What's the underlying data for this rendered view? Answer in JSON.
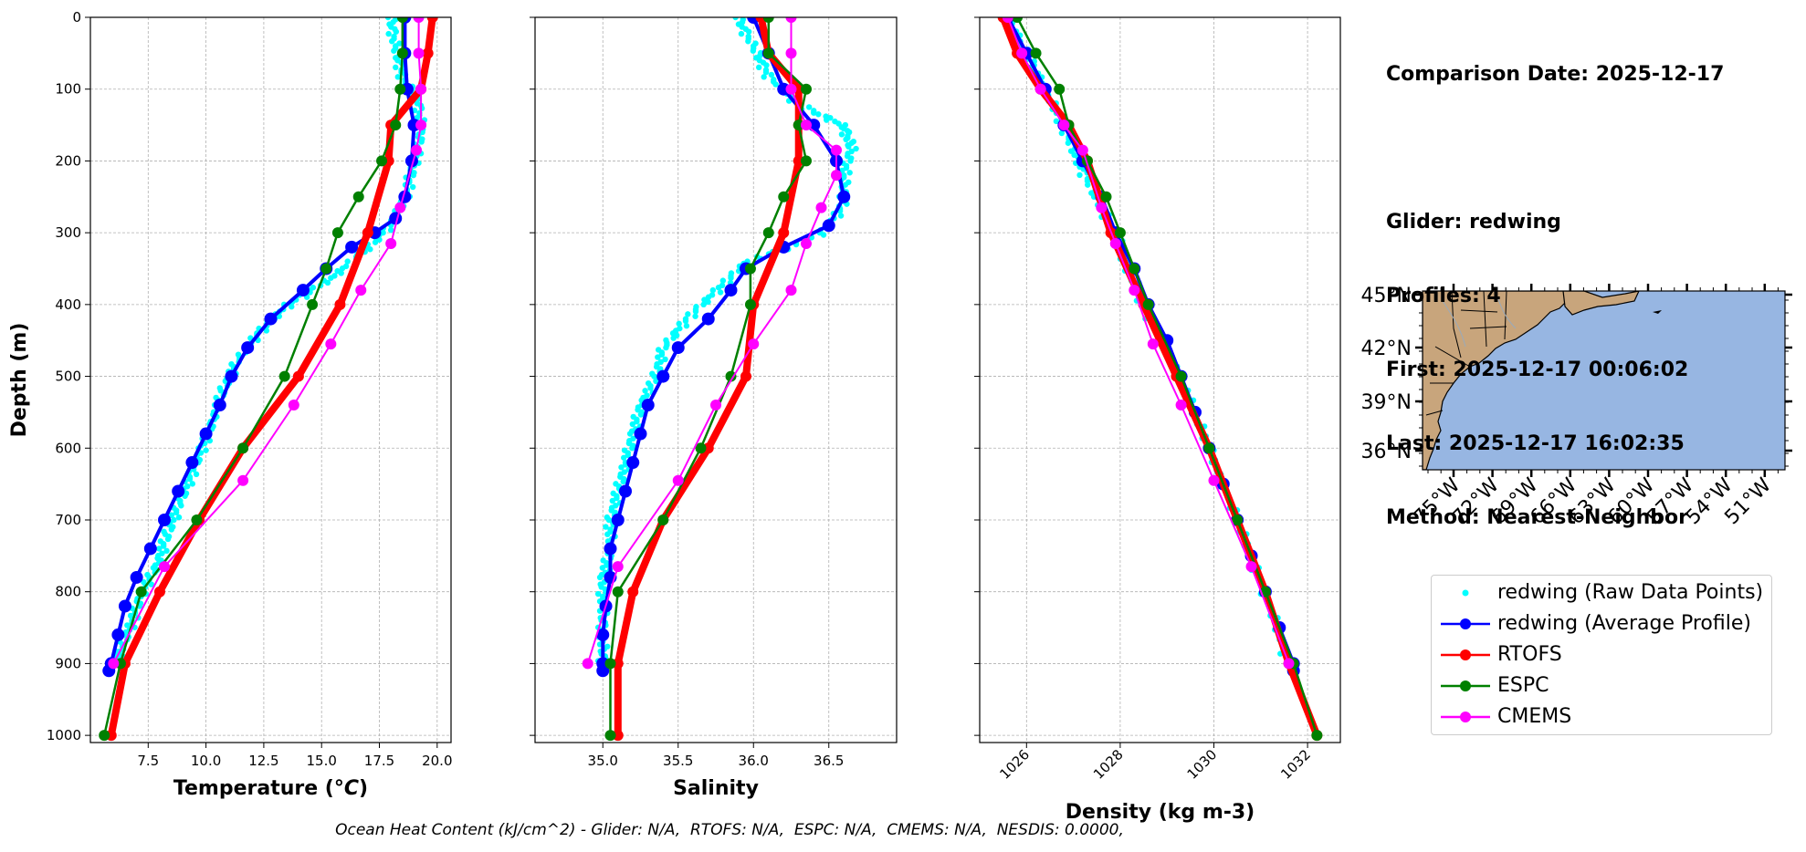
{
  "info": {
    "comparison_date": "Comparison Date: 2025-12-17",
    "glider": "Glider: redwing",
    "profiles": "Profiles: 4",
    "first": "First: 2025-12-17 00:06:02",
    "last": "Last: 2025-12-17 16:02:35",
    "method": "Method: Nearest-Neighbor"
  },
  "footer": "Ocean Heat Content (kJ/cm^2) - Glider: N/A,  RTOFS: N/A,  ESPC: N/A,  CMEMS: N/A,  NESDIS: 0.0000,",
  "colors": {
    "raw": "#00ffff",
    "avg": "#0000ff",
    "rtofs": "#ff0000",
    "espc": "#008000",
    "cmems": "#ff00ff",
    "land": "#c8a57c",
    "ocean": "#97b6e2"
  },
  "legend": [
    {
      "label": "redwing (Raw Data Points)",
      "key": "raw",
      "style": "dots"
    },
    {
      "label": "redwing (Average Profile)",
      "key": "avg",
      "style": "line-marker"
    },
    {
      "label": "RTOFS",
      "key": "rtofs",
      "style": "line-marker"
    },
    {
      "label": "ESPC",
      "key": "espc",
      "style": "line-marker"
    },
    {
      "label": "CMEMS",
      "key": "cmems",
      "style": "line-marker"
    }
  ],
  "map": {
    "lat_ticks": [
      "45°N",
      "42°N",
      "39°N",
      "36°N"
    ],
    "lon_ticks": [
      "75°W",
      "72°W",
      "69°W",
      "66°W",
      "63°W",
      "60°W",
      "57°W",
      "54°W",
      "51°W"
    ]
  },
  "chart_data": [
    {
      "type": "line",
      "xlabel": "Temperature (°C)",
      "ylabel": "Depth (m)",
      "xlim": [
        5.0,
        20.6
      ],
      "ylim": [
        1010,
        0
      ],
      "xticks": [
        7.5,
        10.0,
        12.5,
        15.0,
        17.5,
        20.0
      ],
      "xtick_labels": [
        "7.5",
        "10.0",
        "12.5",
        "15.0",
        "17.5",
        "20.0"
      ],
      "yticks": [
        0,
        100,
        200,
        300,
        400,
        500,
        600,
        700,
        800,
        900,
        1000
      ],
      "grid": true,
      "series": [
        {
          "name": "redwing (Raw Data Points)",
          "key": "raw",
          "depth": [
            0,
            40,
            80,
            120,
            160,
            200,
            240,
            280,
            320,
            360,
            400,
            440,
            480,
            520,
            560,
            600,
            640,
            680,
            720,
            760,
            800,
            840,
            880,
            900
          ],
          "values": [
            18.0,
            18.2,
            18.5,
            19.2,
            19.3,
            19.0,
            18.7,
            18.2,
            17.0,
            15.5,
            13.5,
            12.2,
            11.3,
            10.7,
            10.3,
            9.8,
            9.3,
            8.8,
            8.3,
            7.9,
            7.2,
            6.8,
            6.3,
            6.0
          ]
        },
        {
          "name": "redwing (Average Profile)",
          "key": "avg",
          "depth": [
            0,
            50,
            100,
            150,
            200,
            250,
            280,
            300,
            320,
            350,
            380,
            420,
            460,
            500,
            540,
            580,
            620,
            660,
            700,
            740,
            780,
            820,
            860,
            900,
            910
          ],
          "values": [
            18.6,
            18.6,
            18.7,
            19.0,
            18.9,
            18.6,
            18.2,
            17.3,
            16.3,
            15.2,
            14.2,
            12.8,
            11.8,
            11.1,
            10.6,
            10.0,
            9.4,
            8.8,
            8.2,
            7.6,
            7.0,
            6.5,
            6.2,
            5.9,
            5.8
          ]
        },
        {
          "name": "RTOFS",
          "key": "rtofs",
          "depth": [
            0,
            50,
            100,
            150,
            200,
            300,
            400,
            500,
            600,
            700,
            800,
            900,
            1000
          ],
          "values": [
            19.8,
            19.6,
            19.3,
            18.0,
            17.9,
            17.0,
            15.8,
            14.0,
            11.6,
            9.7,
            8.0,
            6.5,
            5.9
          ]
        },
        {
          "name": "ESPC",
          "key": "espc",
          "depth": [
            0,
            50,
            100,
            150,
            200,
            250,
            300,
            350,
            400,
            500,
            600,
            700,
            800,
            900,
            1000
          ],
          "values": [
            18.5,
            18.5,
            18.4,
            18.2,
            17.6,
            16.6,
            15.7,
            15.2,
            14.6,
            13.4,
            11.6,
            9.6,
            7.2,
            6.3,
            5.6
          ]
        },
        {
          "name": "CMEMS",
          "key": "cmems",
          "depth": [
            0,
            50,
            100,
            150,
            185,
            265,
            315,
            380,
            455,
            540,
            645,
            765,
            900
          ],
          "values": [
            19.2,
            19.2,
            19.3,
            19.3,
            19.1,
            18.4,
            18.0,
            16.7,
            15.4,
            13.8,
            11.6,
            8.2,
            6.0
          ]
        }
      ]
    },
    {
      "type": "line",
      "xlabel": "Salinity",
      "ylabel": "",
      "xlim": [
        34.55,
        36.95
      ],
      "ylim": [
        1010,
        0
      ],
      "xticks": [
        35.0,
        35.5,
        36.0,
        36.5
      ],
      "xtick_labels": [
        "35.0",
        "35.5",
        "36.0",
        "36.5"
      ],
      "yticks": [
        0,
        100,
        200,
        300,
        400,
        500,
        600,
        700,
        800,
        900,
        1000
      ],
      "grid": true,
      "series": [
        {
          "name": "redwing (Raw Data Points)",
          "key": "raw",
          "depth": [
            0,
            40,
            80,
            120,
            150,
            180,
            220,
            260,
            300,
            340,
            380,
            420,
            460,
            500,
            540,
            580,
            620,
            660,
            700,
            740,
            780,
            820,
            860,
            900
          ],
          "values": [
            35.9,
            36.0,
            36.1,
            36.3,
            36.6,
            36.65,
            36.6,
            36.6,
            36.45,
            35.95,
            35.75,
            35.55,
            35.4,
            35.35,
            35.25,
            35.2,
            35.15,
            35.1,
            35.05,
            35.05,
            35.0,
            35.0,
            35.0,
            35.0
          ]
        },
        {
          "name": "redwing (Average Profile)",
          "key": "avg",
          "depth": [
            0,
            50,
            100,
            150,
            200,
            250,
            290,
            320,
            350,
            380,
            420,
            460,
            500,
            540,
            580,
            620,
            660,
            700,
            740,
            780,
            820,
            860,
            900,
            910
          ],
          "values": [
            36.0,
            36.1,
            36.2,
            36.4,
            36.55,
            36.6,
            36.5,
            36.2,
            35.95,
            35.85,
            35.7,
            35.5,
            35.4,
            35.3,
            35.25,
            35.2,
            35.15,
            35.1,
            35.05,
            35.05,
            35.02,
            35.0,
            35.0,
            35.0
          ]
        },
        {
          "name": "RTOFS",
          "key": "rtofs",
          "depth": [
            0,
            50,
            100,
            150,
            200,
            300,
            400,
            500,
            600,
            700,
            800,
            900,
            1000
          ],
          "values": [
            36.05,
            36.1,
            36.3,
            36.3,
            36.3,
            36.2,
            36.0,
            35.95,
            35.7,
            35.4,
            35.2,
            35.1,
            35.1
          ]
        },
        {
          "name": "ESPC",
          "key": "espc",
          "depth": [
            0,
            50,
            100,
            150,
            200,
            250,
            300,
            350,
            400,
            500,
            600,
            700,
            800,
            900,
            1000
          ],
          "values": [
            36.1,
            36.1,
            36.35,
            36.3,
            36.35,
            36.2,
            36.1,
            35.98,
            35.98,
            35.85,
            35.65,
            35.4,
            35.1,
            35.05,
            35.05
          ]
        },
        {
          "name": "CMEMS",
          "key": "cmems",
          "depth": [
            0,
            50,
            100,
            150,
            185,
            220,
            265,
            315,
            380,
            455,
            540,
            645,
            765,
            900
          ],
          "values": [
            36.25,
            36.25,
            36.25,
            36.35,
            36.55,
            36.55,
            36.45,
            36.35,
            36.25,
            36.0,
            35.75,
            35.5,
            35.1,
            34.9
          ]
        }
      ]
    },
    {
      "type": "line",
      "xlabel": "Density (kg m-3)",
      "ylabel": "",
      "xlim": [
        1025.0,
        1032.7
      ],
      "ylim": [
        1010,
        0
      ],
      "xticks": [
        1026,
        1028,
        1030,
        1032
      ],
      "xtick_labels": [
        "1026",
        "1028",
        "1030",
        "1032"
      ],
      "yticks": [
        0,
        100,
        200,
        300,
        400,
        500,
        600,
        700,
        800,
        900,
        1000
      ],
      "grid": true,
      "series": [
        {
          "name": "redwing (Raw Data Points)",
          "key": "raw",
          "depth": [
            0,
            50,
            100,
            150,
            200,
            250,
            300,
            350,
            400,
            500,
            600,
            700,
            800,
            900
          ],
          "values": [
            1025.6,
            1026.0,
            1026.4,
            1026.8,
            1027.1,
            1027.5,
            1027.9,
            1028.2,
            1028.5,
            1029.3,
            1029.9,
            1030.5,
            1031.1,
            1031.6
          ]
        },
        {
          "name": "redwing (Average Profile)",
          "key": "avg",
          "depth": [
            0,
            50,
            100,
            150,
            200,
            250,
            300,
            350,
            400,
            450,
            500,
            550,
            600,
            650,
            700,
            750,
            800,
            850,
            900,
            910
          ],
          "values": [
            1025.6,
            1026.0,
            1026.4,
            1026.8,
            1027.2,
            1027.6,
            1027.9,
            1028.3,
            1028.6,
            1029.0,
            1029.3,
            1029.6,
            1029.9,
            1030.2,
            1030.5,
            1030.8,
            1031.1,
            1031.4,
            1031.7,
            1031.7
          ]
        },
        {
          "name": "RTOFS",
          "key": "rtofs",
          "depth": [
            0,
            50,
            100,
            150,
            200,
            300,
            400,
            500,
            600,
            700,
            800,
            900,
            1000
          ],
          "values": [
            1025.5,
            1025.8,
            1026.3,
            1026.9,
            1027.3,
            1027.8,
            1028.5,
            1029.2,
            1029.9,
            1030.5,
            1031.1,
            1031.6,
            1032.2
          ]
        },
        {
          "name": "ESPC",
          "key": "espc",
          "depth": [
            0,
            50,
            100,
            150,
            200,
            250,
            300,
            350,
            400,
            500,
            600,
            700,
            800,
            900,
            1000
          ],
          "values": [
            1025.8,
            1026.2,
            1026.7,
            1026.9,
            1027.3,
            1027.7,
            1028.0,
            1028.3,
            1028.6,
            1029.3,
            1029.9,
            1030.5,
            1031.1,
            1031.7,
            1032.2
          ]
        },
        {
          "name": "CMEMS",
          "key": "cmems",
          "depth": [
            0,
            50,
            100,
            150,
            185,
            265,
            315,
            380,
            455,
            540,
            645,
            765,
            900
          ],
          "values": [
            1025.6,
            1025.9,
            1026.3,
            1026.8,
            1027.2,
            1027.6,
            1027.9,
            1028.3,
            1028.7,
            1029.3,
            1030.0,
            1030.8,
            1031.6
          ]
        }
      ]
    }
  ]
}
